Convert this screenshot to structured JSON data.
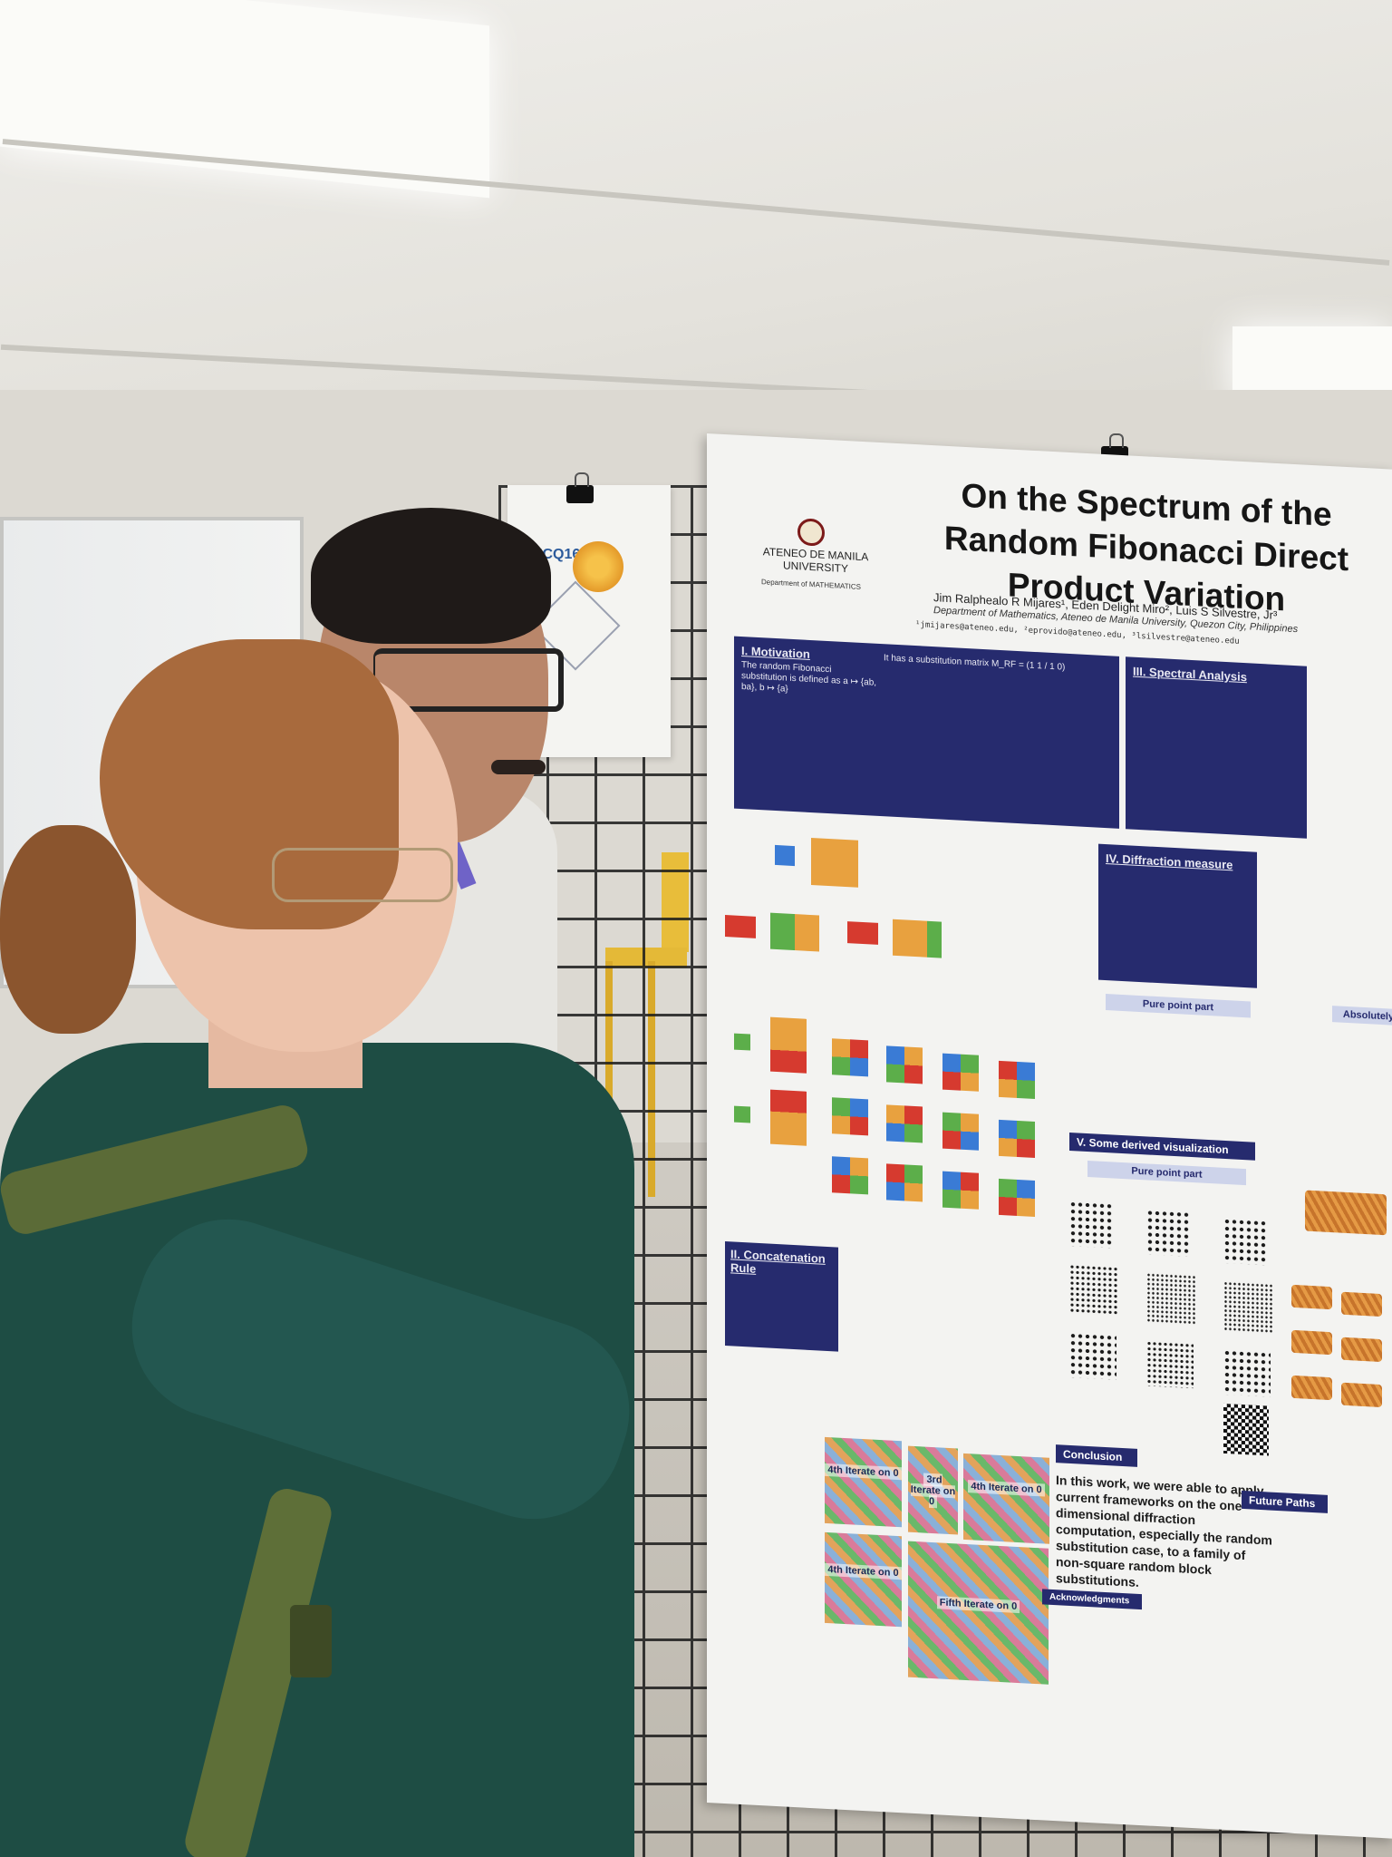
{
  "poster": {
    "title": "On the Spectrum of the Random Fibonacci Direct Product Variation",
    "university": "ATENEO DE MANILA UNIVERSITY",
    "dept_logo": "Department of MATHEMATICS",
    "authors": "Jim Ralphealo R Mijares¹, Eden Delight Miro², Luis S Silvestre, Jr³",
    "affiliation": "Department of Mathematics, Ateneo de Manila University, Quezon City, Philippines",
    "emails": "¹jmijares@ateneo.edu, ²eprovido@ateneo.edu, ³lsilvestre@ateneo.edu",
    "sections": {
      "motivation": "I. Motivation",
      "motivation_text": "The random Fibonacci substitution is defined as a ↦ {ab, ba}, b ↦ {a}",
      "matrix_text": "It has a substitution matrix M_RF = (1 1 / 1 0)",
      "spectral": "III. Spectral Analysis",
      "diffraction": "IV. Diffraction measure",
      "pure_point": "Pure point part",
      "absolutely": "Absolutely",
      "concatenation": "II. Concatenation Rule",
      "derived": "V. Some derived visualization",
      "conclusion": "Conclusion",
      "conclusion_text": "In this work, we were able to apply current frameworks on the one-dimensional diffraction computation, especially the random substitution case, to a family of non-square random block substitutions.",
      "future": "Future Paths",
      "acknowledgments": "Acknowledgments"
    },
    "iterates": [
      "4th Iterate on 0",
      "3rd Iterate on 0",
      "4th Iterate on 0",
      "Fifth Iterate on 0",
      "4th Iterate on 0"
    ],
    "colors": {
      "navy": "#262b6e",
      "red": "#d63a2f",
      "green": "#5cae4a",
      "blue": "#3a7bd5",
      "orange": "#e8a13f"
    }
  },
  "small_poster": {
    "conference": "ICQ16"
  }
}
